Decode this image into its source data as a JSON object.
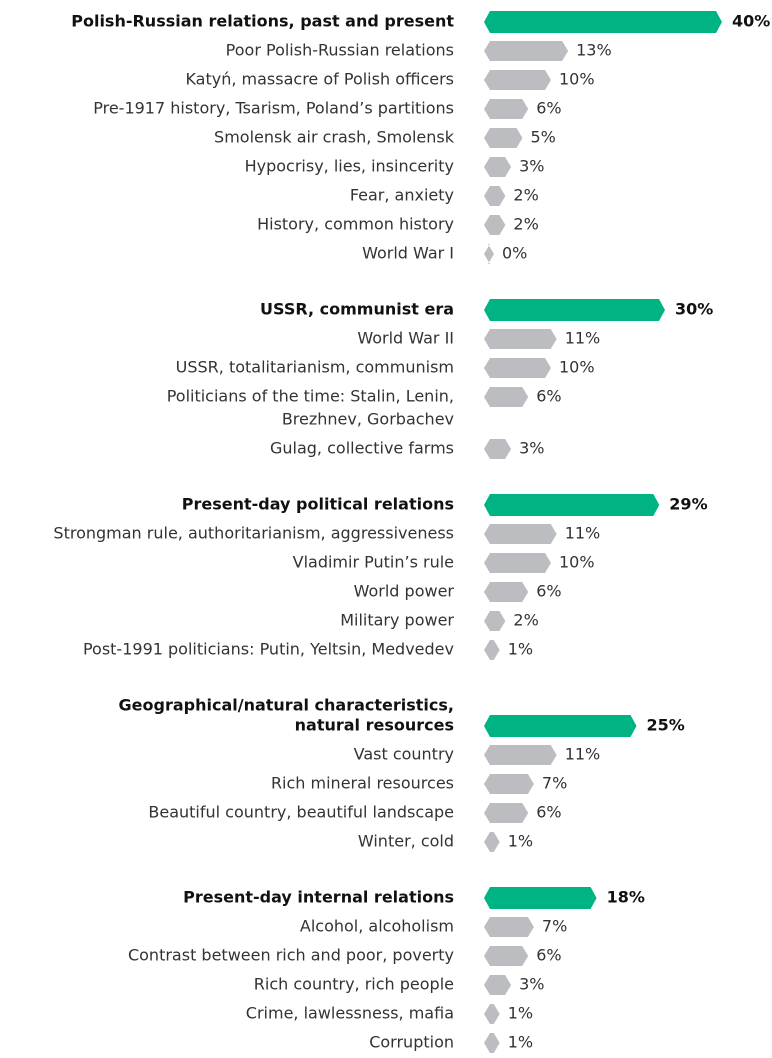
{
  "chart_data": {
    "type": "bar",
    "header_color": "#00b383",
    "color": "#bcbdc1",
    "groups": [
      {
        "category": [
          "Polish-Russian relations, past and present"
        ],
        "value": 40,
        "value_label": "40%",
        "categories": [
          [
            "Poor Polish-Russian relations"
          ],
          [
            "Katyń, massacre of Polish officers"
          ],
          [
            "Pre-1917 history, Tsarism, Poland’s partitions"
          ],
          [
            "Smolensk air crash, Smolensk"
          ],
          [
            "Hypocrisy, lies, insincerity"
          ],
          [
            "Fear, anxiety"
          ],
          [
            "History, common history"
          ],
          [
            "World War I"
          ]
        ],
        "values": [
          13,
          10,
          6,
          5,
          3,
          2,
          2,
          0
        ],
        "value_labels": [
          "13%",
          "10%",
          "6%",
          "5%",
          "3%",
          "2%",
          "2%",
          "0%"
        ]
      },
      {
        "category": [
          "USSR, communist era"
        ],
        "value": 30,
        "value_label": "30%",
        "categories": [
          [
            "World War II"
          ],
          [
            "USSR, totalitarianism, communism"
          ],
          [
            "Politicians of the time: Stalin, Lenin,",
            "Brezhnev, Gorbachev"
          ],
          [
            "Gulag, collective farms"
          ]
        ],
        "values": [
          11,
          10,
          6,
          3
        ],
        "value_labels": [
          "11%",
          "10%",
          "6%",
          "3%"
        ]
      },
      {
        "category": [
          "Present-day political relations"
        ],
        "value": 29,
        "value_label": "29%",
        "categories": [
          [
            "Strongman rule, authoritarianism, aggressiveness"
          ],
          [
            "Vladimir Putin’s rule"
          ],
          [
            "World power"
          ],
          [
            "Military power"
          ],
          [
            "Post-1991 politicians: Putin, Yeltsin, Medvedev"
          ]
        ],
        "values": [
          11,
          10,
          6,
          2,
          1
        ],
        "value_labels": [
          "11%",
          "10%",
          "6%",
          "2%",
          "1%"
        ]
      },
      {
        "category": [
          "Geographical/natural characteristics,",
          "natural resources"
        ],
        "value": 25,
        "value_label": "25%",
        "categories": [
          [
            "Vast country"
          ],
          [
            "Rich mineral resources"
          ],
          [
            "Beautiful country, beautiful landscape"
          ],
          [
            "Winter, cold"
          ]
        ],
        "values": [
          11,
          7,
          6,
          1
        ],
        "value_labels": [
          "11%",
          "7%",
          "6%",
          "1%"
        ]
      },
      {
        "category": [
          "Present-day internal relations"
        ],
        "value": 18,
        "value_label": "18%",
        "categories": [
          [
            "Alcohol, alcoholism"
          ],
          [
            "Contrast between rich and poor, poverty"
          ],
          [
            "Rich country, rich people"
          ],
          [
            "Crime, lawlessness, mafia"
          ],
          [
            "Corruption"
          ]
        ],
        "values": [
          7,
          6,
          3,
          1,
          1
        ],
        "value_labels": [
          "7%",
          "6%",
          "3%",
          "1%",
          "1%"
        ]
      }
    ]
  }
}
